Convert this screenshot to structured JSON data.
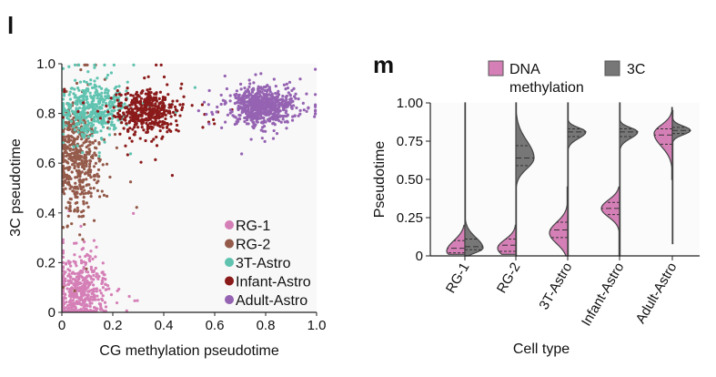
{
  "panel_labels": {
    "left": "l",
    "right": "m"
  },
  "chart_data": [
    {
      "type": "scatter",
      "xlabel": "CG methylation pseudotime",
      "ylabel": "3C pseudotime",
      "xlim": [
        0,
        1
      ],
      "ylim": [
        0,
        1
      ],
      "xticks": [
        "0",
        "0.2",
        "0.4",
        "0.6",
        "0.8",
        "1.0"
      ],
      "yticks": [
        "0",
        "0.2",
        "0.4",
        "0.6",
        "0.8",
        "1.0"
      ],
      "grid": false,
      "legend_position": "bottom-right",
      "series": [
        {
          "name": "RG-1",
          "color": "#d57fb7",
          "cluster": {
            "x_mean": 0.07,
            "y_mean": 0.08,
            "x_sd": 0.05,
            "y_sd": 0.07,
            "n": 500
          }
        },
        {
          "name": "RG-2",
          "color": "#945a4a",
          "cluster": {
            "x_mean": 0.06,
            "y_mean": 0.62,
            "x_sd": 0.04,
            "y_sd": 0.1,
            "n": 500
          }
        },
        {
          "name": "3T-Astro",
          "color": "#5fc3b0",
          "cluster": {
            "x_mean": 0.12,
            "y_mean": 0.82,
            "x_sd": 0.06,
            "y_sd": 0.05,
            "n": 450
          }
        },
        {
          "name": "Infant-Astro",
          "color": "#8b1a1a",
          "cluster": {
            "x_mean": 0.33,
            "y_mean": 0.81,
            "x_sd": 0.06,
            "y_sd": 0.04,
            "n": 450
          }
        },
        {
          "name": "Adult-Astro",
          "color": "#9563b2",
          "cluster": {
            "x_mean": 0.79,
            "y_mean": 0.83,
            "x_sd": 0.06,
            "y_sd": 0.035,
            "n": 650
          }
        }
      ]
    },
    {
      "type": "violin",
      "xlabel": "Cell type",
      "ylabel": "Pseudotime",
      "ylim": [
        0,
        1
      ],
      "yticks": [
        "0",
        "0.25",
        "0.50",
        "0.75",
        "1.00"
      ],
      "categories": [
        "RG-1",
        "RG-2",
        "3T-Astro",
        "Infant-Astro",
        "Adult-Astro"
      ],
      "legend": [
        {
          "name": "DNA methylation",
          "line1": "DNA",
          "line2": "methylation",
          "color": "#d57fb7"
        },
        {
          "name": "3C",
          "color": "#777777"
        }
      ],
      "series": [
        {
          "name": "DNA methylation",
          "side": "left",
          "color": "#d57fb7",
          "stats": [
            {
              "min": 0.01,
              "q1": 0.02,
              "median": 0.05,
              "q3": 0.1,
              "max": 0.2,
              "mode": 0.03
            },
            {
              "min": 0.01,
              "q1": 0.03,
              "median": 0.07,
              "q3": 0.11,
              "max": 0.2,
              "mode": 0.05
            },
            {
              "min": 0.0,
              "q1": 0.12,
              "median": 0.17,
              "q3": 0.22,
              "max": 0.45,
              "mode": 0.15
            },
            {
              "min": 0.0,
              "q1": 0.27,
              "median": 0.31,
              "q3": 0.35,
              "max": 0.45,
              "mode": 0.31
            },
            {
              "min": 0.5,
              "q1": 0.73,
              "median": 0.79,
              "q3": 0.83,
              "max": 0.97,
              "mode": 0.8
            }
          ]
        },
        {
          "name": "3C",
          "side": "right",
          "color": "#777777",
          "stats": [
            {
              "min": 0.0,
              "q1": 0.04,
              "median": 0.06,
              "q3": 0.11,
              "max": 1.0,
              "mode": 0.05
            },
            {
              "min": 0.0,
              "q1": 0.59,
              "median": 0.64,
              "q3": 0.72,
              "max": 1.0,
              "mode": 0.64
            },
            {
              "min": 0.0,
              "q1": 0.78,
              "median": 0.81,
              "q3": 0.83,
              "max": 1.0,
              "mode": 0.81
            },
            {
              "min": 0.0,
              "q1": 0.78,
              "median": 0.81,
              "q3": 0.83,
              "max": 1.0,
              "mode": 0.81
            },
            {
              "min": 0.08,
              "q1": 0.8,
              "median": 0.82,
              "q3": 0.84,
              "max": 0.95,
              "mode": 0.82
            }
          ]
        }
      ]
    }
  ]
}
